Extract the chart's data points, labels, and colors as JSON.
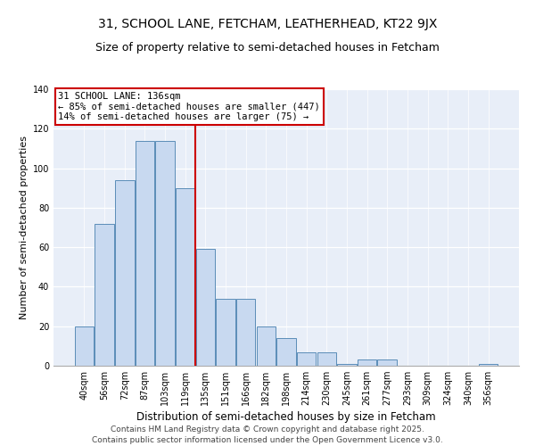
{
  "title": "31, SCHOOL LANE, FETCHAM, LEATHERHEAD, KT22 9JX",
  "subtitle": "Size of property relative to semi-detached houses in Fetcham",
  "xlabel": "Distribution of semi-detached houses by size in Fetcham",
  "ylabel": "Number of semi-detached properties",
  "bin_labels": [
    "40sqm",
    "56sqm",
    "72sqm",
    "87sqm",
    "103sqm",
    "119sqm",
    "135sqm",
    "151sqm",
    "166sqm",
    "182sqm",
    "198sqm",
    "214sqm",
    "230sqm",
    "245sqm",
    "261sqm",
    "277sqm",
    "293sqm",
    "309sqm",
    "324sqm",
    "340sqm",
    "356sqm"
  ],
  "bar_heights": [
    20,
    72,
    94,
    114,
    114,
    90,
    59,
    34,
    34,
    20,
    14,
    7,
    7,
    1,
    3,
    3,
    0,
    0,
    0,
    0,
    1
  ],
  "bar_color": "#c8d9f0",
  "bar_edge_color": "#5b8db8",
  "annotation_title": "31 SCHOOL LANE: 136sqm",
  "annotation_line1": "← 85% of semi-detached houses are smaller (447)",
  "annotation_line2": "14% of semi-detached houses are larger (75) →",
  "vline_color": "#cc0000",
  "annotation_box_color": "#cc0000",
  "vline_index": 6,
  "ylim": [
    0,
    140
  ],
  "yticks": [
    0,
    20,
    40,
    60,
    80,
    100,
    120,
    140
  ],
  "background_color": "#e8eef8",
  "footer": "Contains HM Land Registry data © Crown copyright and database right 2025.\nContains public sector information licensed under the Open Government Licence v3.0.",
  "title_fontsize": 10,
  "subtitle_fontsize": 9,
  "xlabel_fontsize": 8.5,
  "ylabel_fontsize": 8,
  "tick_fontsize": 7,
  "annotation_fontsize": 7.5,
  "footer_fontsize": 6.5
}
